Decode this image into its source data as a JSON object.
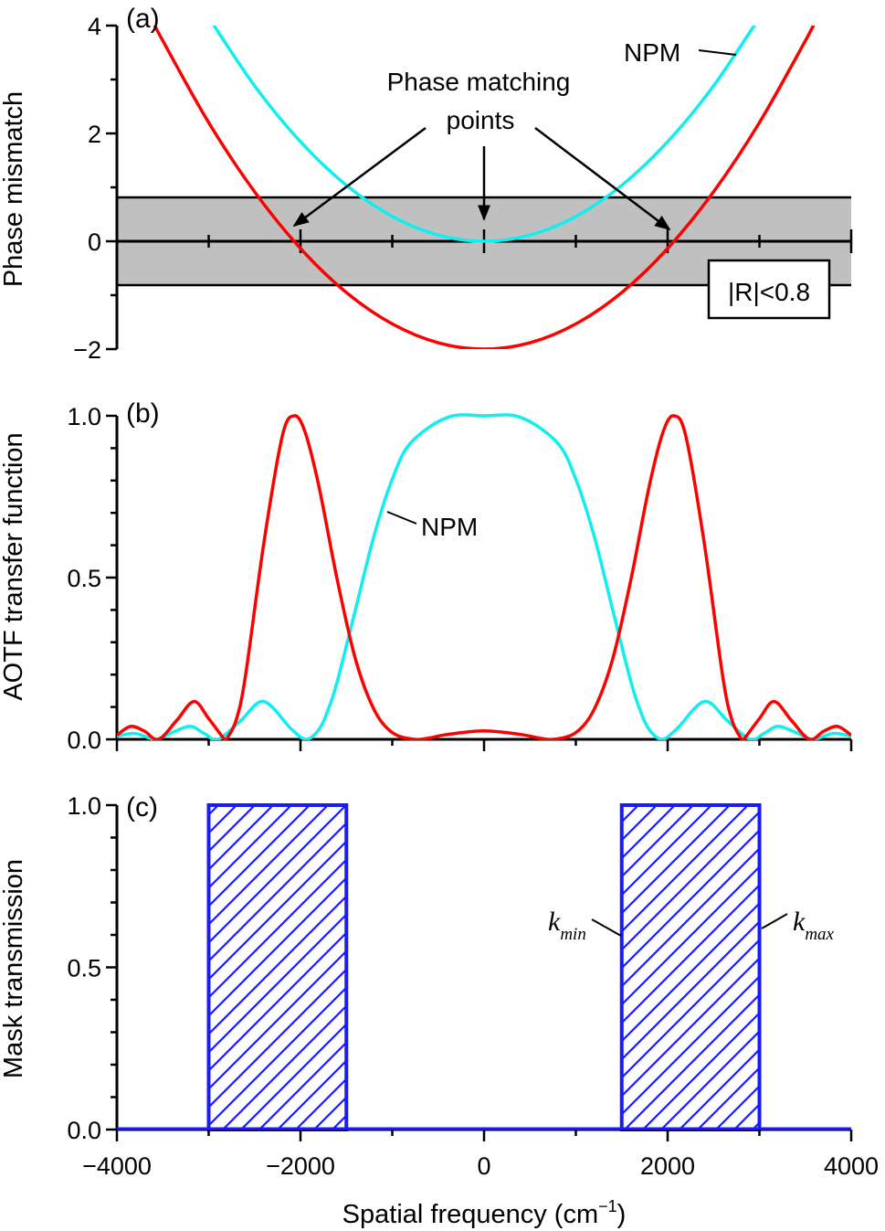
{
  "chart_data": [
    {
      "panel": "(a)",
      "type": "line",
      "ylabel": "Phase mismatch",
      "xlim": [
        -4000,
        4000
      ],
      "ylim": [
        -2,
        4
      ],
      "yticks": [
        "4",
        "2",
        "0",
        "−2"
      ],
      "band": {
        "from": -0.8,
        "to": 0.8,
        "color": "#c0c0c0",
        "label": "|R|<0.8"
      },
      "annotations": {
        "phase_matching_line1": "Phase matching",
        "phase_matching_line2": "points",
        "npm": "NPM"
      },
      "series": [
        {
          "name": "NPM",
          "color": "#11eeee",
          "x": [
            -3100,
            -3000,
            -2500,
            -2000,
            -1500,
            -1000,
            -500,
            0,
            500,
            1000,
            1500,
            2000,
            2500,
            3000,
            3100
          ],
          "y": [
            4.43,
            4.151,
            2.883,
            1.845,
            1.038,
            0.461,
            0.115,
            0,
            0.115,
            0.461,
            1.038,
            1.845,
            2.883,
            4.151,
            4.43
          ]
        },
        {
          "color": "#ff0000",
          "x": [
            -3600,
            -3500,
            -3000,
            -2500,
            -2000,
            -1500,
            -1000,
            -500,
            0,
            500,
            1000,
            1500,
            2000,
            2500,
            3000,
            3500,
            3600
          ],
          "y": [
            4.05,
            3.718,
            2.201,
            0.917,
            -0.133,
            -0.95,
            -1.533,
            -1.883,
            -2,
            -1.883,
            -1.533,
            -0.95,
            -0.133,
            0.917,
            2.201,
            3.718,
            4.05
          ]
        }
      ]
    },
    {
      "panel": "(b)",
      "type": "line",
      "ylabel": "AOTF transfer function",
      "xlim": [
        -4000,
        4000
      ],
      "ylim": [
        0,
        1
      ],
      "yticks": [
        "1.0",
        "0.5",
        "0.0"
      ],
      "annotations": {
        "npm": "NPM"
      },
      "series": [
        {
          "name": "NPM",
          "color": "#11eeee",
          "x": [
            -4000,
            -3800,
            -3580,
            -3400,
            -3200,
            -3050,
            -2897,
            -2650,
            -2400,
            -2100,
            -1938,
            -1800,
            -1700,
            -1600,
            -1400,
            -1200,
            -1000,
            -800,
            -400,
            0,
            400,
            800,
            1000,
            1200,
            1400,
            1600,
            1700,
            1800,
            1938,
            2100,
            2400,
            2650,
            2897,
            3050,
            3200,
            3400,
            3580,
            3800,
            4000
          ],
          "y": [
            0.01,
            0.018,
            0,
            0.021,
            0.04,
            0.018,
            0,
            0.058,
            0.117,
            0.032,
            0,
            0.03,
            0.09,
            0.178,
            0.402,
            0.628,
            0.804,
            0.916,
            0.995,
            1,
            0.995,
            0.916,
            0.804,
            0.628,
            0.402,
            0.178,
            0.09,
            0.03,
            0,
            0.032,
            0.117,
            0.058,
            0,
            0.018,
            0.04,
            0.021,
            0,
            0.018,
            0.01
          ]
        },
        {
          "color": "#ff0000",
          "x": [
            -4000,
            -3850,
            -3700,
            -3546,
            -3350,
            -3160,
            -3000,
            -2828,
            -2800,
            -2700,
            -2600,
            -2400,
            -2200,
            -2070,
            -1950,
            -1800,
            -1600,
            -1400,
            -1200,
            -1000,
            -758,
            -600,
            -400,
            0,
            400,
            600,
            758,
            1000,
            1200,
            1400,
            1600,
            1800,
            1950,
            2070,
            2200,
            2400,
            2600,
            2700,
            2800,
            2828,
            3000,
            3160,
            3350,
            3546,
            3700,
            3850,
            4000
          ],
          "y": [
            0.013,
            0.04,
            0.025,
            0,
            0.058,
            0.117,
            0.064,
            0,
            0.003,
            0.06,
            0.195,
            0.605,
            0.935,
            1,
            0.95,
            0.783,
            0.494,
            0.247,
            0.093,
            0.021,
            0,
            0.004,
            0.015,
            0.026,
            0.015,
            0.004,
            0,
            0.021,
            0.093,
            0.247,
            0.494,
            0.783,
            0.95,
            1,
            0.935,
            0.605,
            0.195,
            0.06,
            0.003,
            0,
            0.064,
            0.117,
            0.058,
            0,
            0.025,
            0.04,
            0.013
          ]
        }
      ]
    },
    {
      "panel": "(c)",
      "type": "bar",
      "ylabel": "Mask transmission",
      "xlabel": "Spatial frequency  (cm",
      "xlabel_sup": "−1",
      "xlabel_end": ")",
      "xlim": [
        -4000,
        4000
      ],
      "ylim": [
        0,
        1
      ],
      "yticks": [
        "1.0",
        "0.5",
        "0.0"
      ],
      "xticks": [
        "−4000",
        "−2000",
        "0",
        "2000",
        "4000"
      ],
      "color": "#1a1aff",
      "fill": "hatched",
      "bars": [
        {
          "from": -3000,
          "to": -1500,
          "value": 1
        },
        {
          "from": 1500,
          "to": 3000,
          "value": 1
        }
      ],
      "annotations": {
        "k_min": "k",
        "k_min_sub": "min",
        "k_max": "k",
        "k_max_sub": "max"
      }
    }
  ]
}
